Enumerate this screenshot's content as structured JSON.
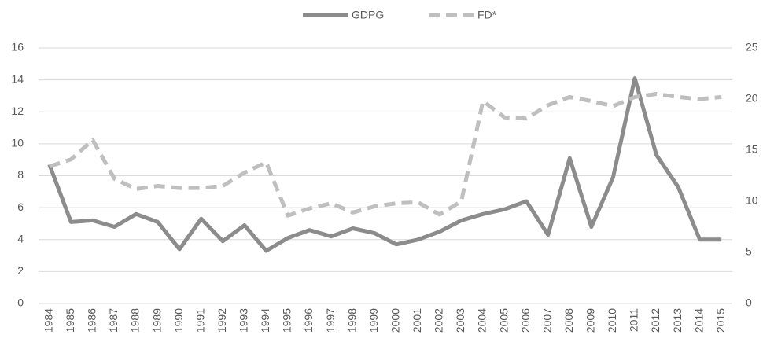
{
  "chart_data": {
    "type": "line",
    "categories": [
      "1984",
      "1985",
      "1986",
      "1987",
      "1988",
      "1989",
      "1990",
      "1991",
      "1992",
      "1993",
      "1994",
      "1995",
      "1996",
      "1997",
      "1998",
      "1999",
      "2000",
      "2001",
      "2002",
      "2003",
      "2004",
      "2005",
      "2006",
      "2007",
      "2008",
      "2009",
      "2010",
      "2011",
      "2012",
      "2013",
      "2014",
      "2015"
    ],
    "series": [
      {
        "name": "GDPG",
        "color": "#8c8c8c",
        "linestyle": "solid",
        "values": [
          8.7,
          5.1,
          5.2,
          4.8,
          5.6,
          5.1,
          3.4,
          5.3,
          3.9,
          4.9,
          3.3,
          4.1,
          4.6,
          4.2,
          4.7,
          4.4,
          3.7,
          4.0,
          4.5,
          5.2,
          5.6,
          5.9,
          6.4,
          4.3,
          9.1,
          4.8,
          7.9,
          14.1,
          9.3,
          7.3,
          4.0,
          4.0
        ]
      },
      {
        "name": "FD*",
        "color": "#bfbfbf",
        "linestyle": "dashed",
        "axis": "y2",
        "values": [
          13.4,
          14.1,
          16.0,
          12.2,
          11.2,
          11.5,
          11.3,
          11.3,
          11.5,
          12.8,
          13.8,
          8.6,
          9.3,
          9.8,
          8.9,
          9.5,
          9.8,
          9.9,
          8.7,
          10.0,
          19.8,
          18.2,
          18.1,
          19.4,
          20.2,
          19.8,
          19.3,
          20.2,
          20.5,
          20.2,
          20.0,
          20.2
        ]
      }
    ],
    "ylim": [
      0,
      16
    ],
    "yticks": [
      0,
      2,
      4,
      6,
      8,
      10,
      12,
      14,
      16
    ],
    "y2lim": [
      0,
      25
    ],
    "y2ticks": [
      0,
      5,
      10,
      15,
      20,
      25
    ],
    "grid": true,
    "legend": "top"
  }
}
